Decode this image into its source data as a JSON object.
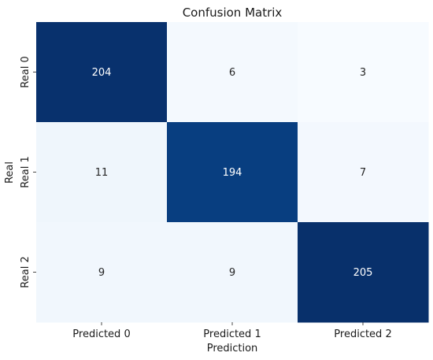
{
  "chart_data": {
    "type": "heatmap",
    "title": "Confusion Matrix",
    "xlabel": "Prediction",
    "ylabel": "Real",
    "x_categories": [
      "Predicted 0",
      "Predicted 1",
      "Predicted 2"
    ],
    "y_categories": [
      "Real 0",
      "Real 1",
      "Real 2"
    ],
    "values": [
      [
        204,
        6,
        3
      ],
      [
        11,
        194,
        7
      ],
      [
        9,
        9,
        205
      ]
    ],
    "colormap": "Blues",
    "colorbar": false,
    "value_range": [
      3,
      205
    ]
  }
}
